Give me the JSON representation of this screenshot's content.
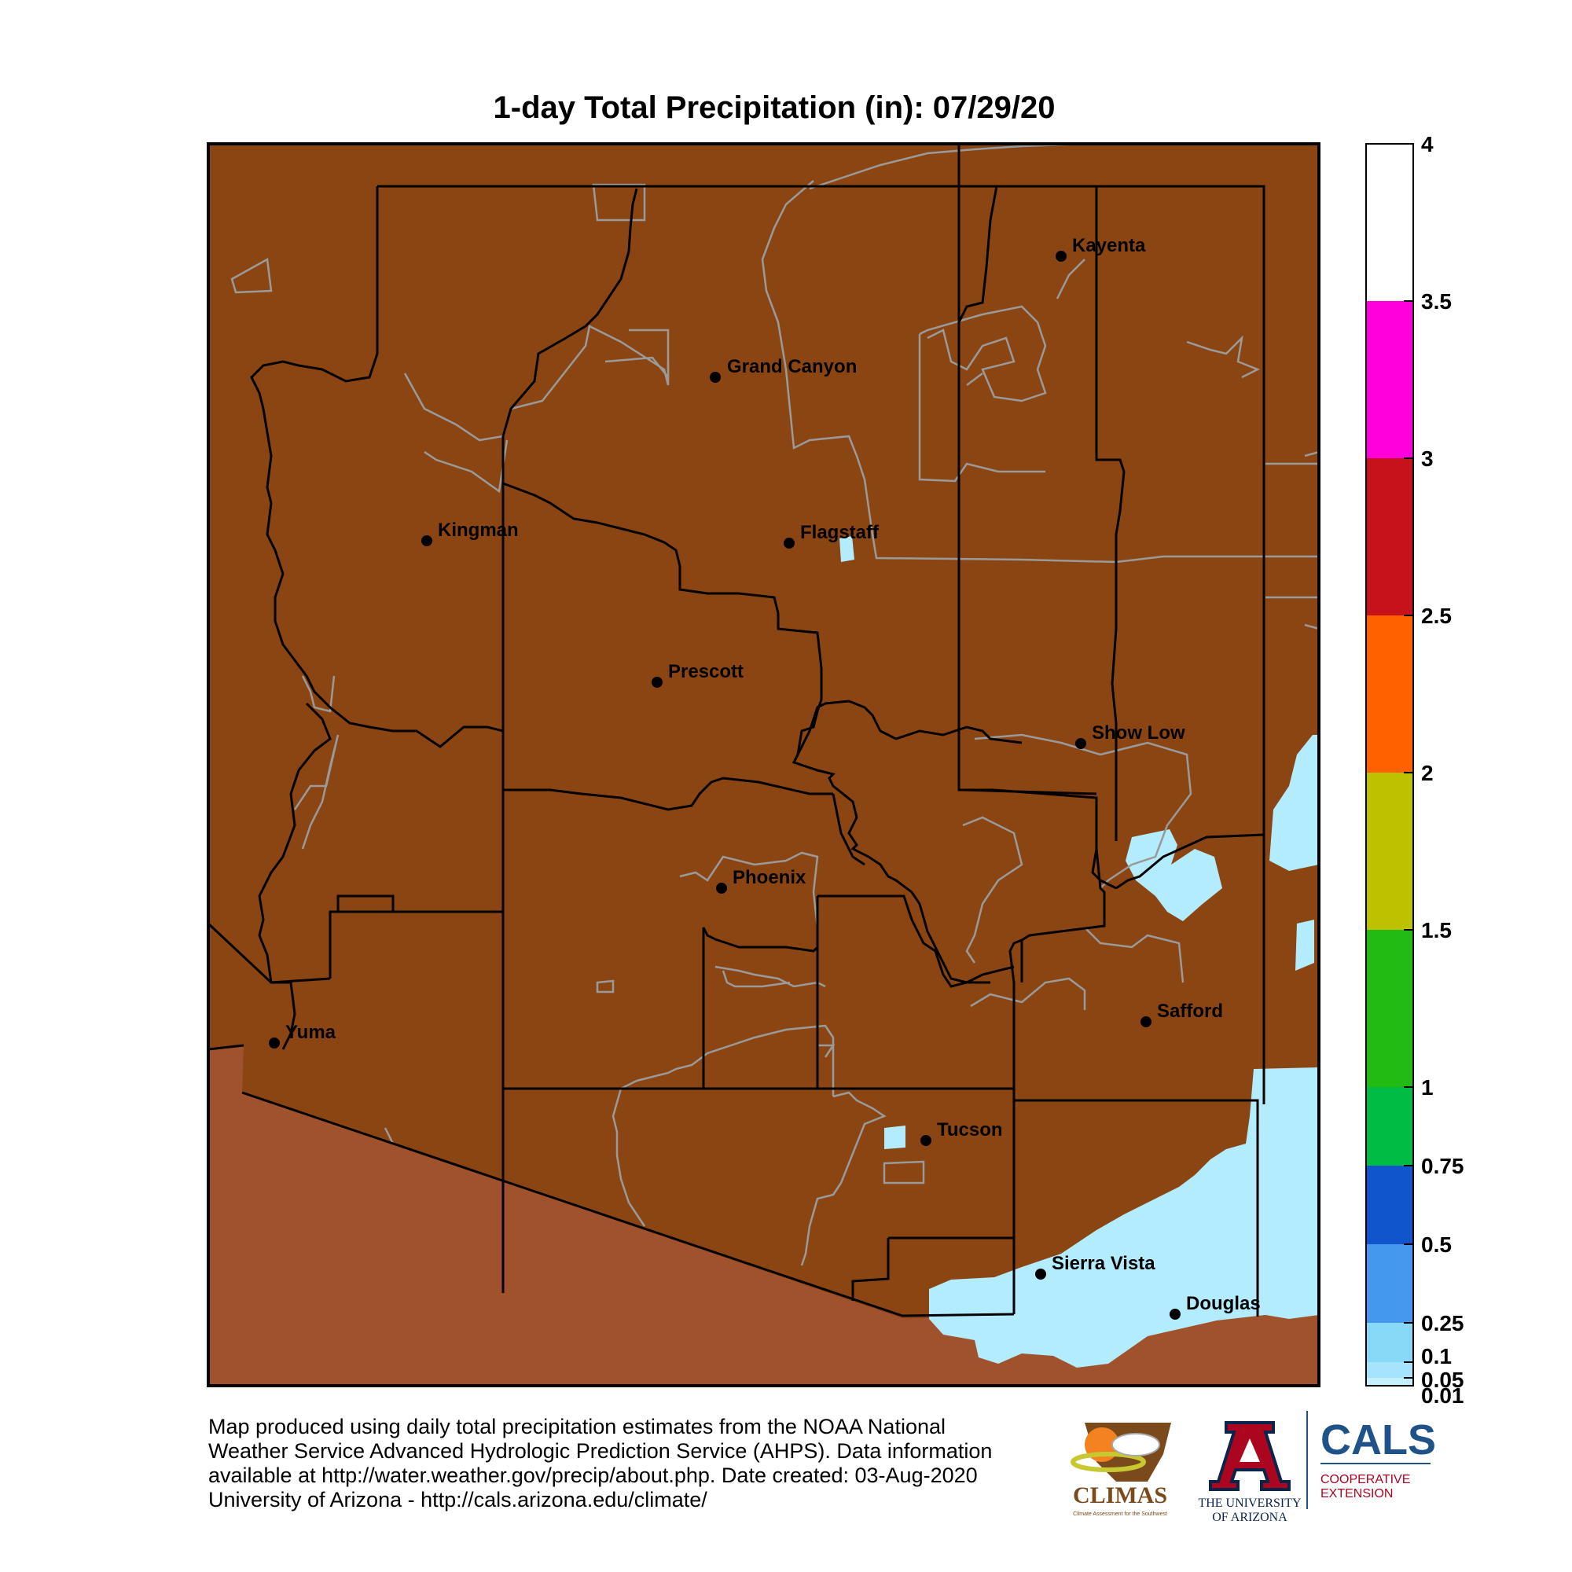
{
  "title": "1-day Total Precipitation (in): 07/29/20",
  "colors": {
    "land_no_precip": "#8b4513",
    "outside_state": "#a0522d",
    "light_precip": "#b3ecff",
    "county_line": "#000000",
    "reservation_line": "#9a9a9a"
  },
  "legend": {
    "tick_labels": [
      "4",
      "3.5",
      "3",
      "2.5",
      "2",
      "1.5",
      "1",
      "0.75",
      "0.5",
      "0.25",
      "0.1",
      "0.05",
      "0.01"
    ],
    "bands": [
      {
        "from": "3.5",
        "to": "4",
        "color": "#ffffff"
      },
      {
        "from": "3",
        "to": "3.5",
        "color": "#ff00dd"
      },
      {
        "from": "2.5",
        "to": "3",
        "color": "#c8121b"
      },
      {
        "from": "2",
        "to": "2.5",
        "color": "#ff6000"
      },
      {
        "from": "1.5",
        "to": "2",
        "color": "#bcc200"
      },
      {
        "from": "1",
        "to": "1.5",
        "color": "#22bb11"
      },
      {
        "from": "0.75",
        "to": "1",
        "color": "#00bb44"
      },
      {
        "from": "0.5",
        "to": "0.75",
        "color": "#1155cc"
      },
      {
        "from": "0.25",
        "to": "0.5",
        "color": "#4499ee"
      },
      {
        "from": "0.1",
        "to": "0.25",
        "color": "#88d8f8"
      },
      {
        "from": "0.05",
        "to": "0.1",
        "color": "#a6e4fb"
      },
      {
        "from": "0.01",
        "to": "0.05",
        "color": "#c2f0ff"
      }
    ]
  },
  "cities": [
    {
      "name": "Kayenta"
    },
    {
      "name": "Grand Canyon"
    },
    {
      "name": "Kingman"
    },
    {
      "name": "Flagstaff"
    },
    {
      "name": "Prescott"
    },
    {
      "name": "Show Low"
    },
    {
      "name": "Phoenix"
    },
    {
      "name": "Safford"
    },
    {
      "name": "Yuma"
    },
    {
      "name": "Tucson"
    },
    {
      "name": "Sierra Vista"
    },
    {
      "name": "Douglas"
    }
  ],
  "footer": {
    "line1": "Map produced using daily total precipitation estimates from the NOAA National",
    "line2": "Weather Service Advanced Hydrologic Prediction Service (AHPS). Data information",
    "line3": "available at http://water.weather.gov/precip/about.php. Date created: 03-Aug-2020",
    "line4": "University of Arizona - http://cals.arizona.edu/climate/"
  },
  "logos": {
    "climas_name": "CLIMAS",
    "climas_tagline": "Climate Assessment for the Southwest",
    "ua_line1": "THE UNIVERSITY",
    "ua_line2": "OF ARIZONA",
    "cals_name": "CALS",
    "cals_line1": "COOPERATIVE",
    "cals_line2": "EXTENSION"
  }
}
